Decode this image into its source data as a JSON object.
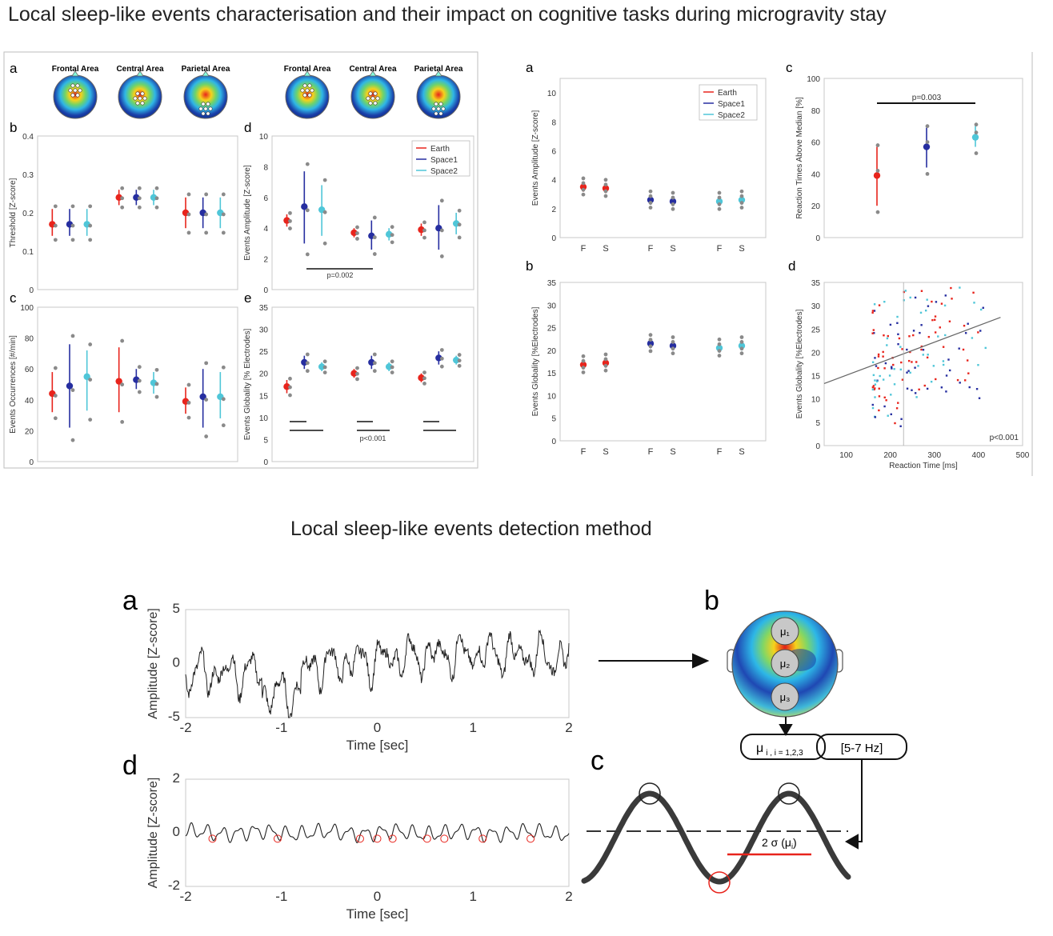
{
  "titles": {
    "main": "Local sleep-like events characterisation and their impact on cognitive tasks during microgravity stay",
    "method": "Local sleep-like events detection method"
  },
  "panel_letters": {
    "a1": "a",
    "b1": "b",
    "c1": "c",
    "d1": "d",
    "e1": "e",
    "a2": "a",
    "b2": "b",
    "c2": "c",
    "d2": "d",
    "a3": "a",
    "b3": "b",
    "c3": "c",
    "d3": "d"
  },
  "areas": [
    "Frontal Area",
    "Central Area",
    "Parietal Area"
  ],
  "legend": [
    "Earth",
    "Space1",
    "Space2"
  ],
  "colors": {
    "earth": "#e8241c",
    "space1": "#262ea0",
    "space2": "#4fc6d8",
    "gray": "#8a8a8a"
  },
  "electrodes": {
    "mu1": "μ₁",
    "mu2": "μ₂",
    "mu3": "μ₃"
  },
  "flow": {
    "mu_label": "μ",
    "mu_sub": "i , i = 1,2,3",
    "band": "[5-7 Hz]",
    "sigma": "2 σ (μ",
    "sigma_sub": "i",
    "sigma_close": ")"
  },
  "chart_data": [
    {
      "id": "threshold",
      "type": "scatter",
      "ylabel": "Threshold [Z-score]",
      "ylim": [
        0,
        0.4
      ],
      "yticks": [
        "0",
        "0.1",
        "0.2",
        "0.3",
        "0.4"
      ],
      "groups": [
        "Frontal Area",
        "Central Area",
        "Parietal Area"
      ],
      "series": [
        {
          "name": "Earth",
          "mean": [
            0.17,
            0.24,
            0.2
          ],
          "lo": [
            0.14,
            0.22,
            0.16
          ],
          "hi": [
            0.21,
            0.26,
            0.24
          ]
        },
        {
          "name": "Space1",
          "mean": [
            0.17,
            0.24,
            0.2
          ],
          "lo": [
            0.14,
            0.22,
            0.16
          ],
          "hi": [
            0.21,
            0.26,
            0.24
          ]
        },
        {
          "name": "Space2",
          "mean": [
            0.17,
            0.24,
            0.2
          ],
          "lo": [
            0.14,
            0.22,
            0.16
          ],
          "hi": [
            0.21,
            0.26,
            0.24
          ]
        }
      ]
    },
    {
      "id": "occurrences",
      "type": "scatter",
      "ylabel": "Events Occurrences [#/min]",
      "ylim": [
        0,
        100
      ],
      "yticks": [
        "0",
        "20",
        "40",
        "60",
        "80",
        "100"
      ],
      "groups": [
        "Frontal Area",
        "Central Area",
        "Parietal Area"
      ],
      "series": [
        {
          "name": "Earth",
          "mean": [
            44,
            52,
            39
          ],
          "lo": [
            32,
            32,
            31
          ],
          "hi": [
            58,
            74,
            48
          ]
        },
        {
          "name": "Space1",
          "mean": [
            49,
            53,
            42
          ],
          "lo": [
            22,
            47,
            22
          ],
          "hi": [
            76,
            60,
            60
          ]
        },
        {
          "name": "Space2",
          "mean": [
            55,
            51,
            42
          ],
          "lo": [
            33,
            44,
            28
          ],
          "hi": [
            72,
            58,
            58
          ]
        }
      ]
    },
    {
      "id": "amplitude-d",
      "type": "scatter",
      "ylabel": "Events Amplitude [Z-score]",
      "ylim": [
        0,
        10
      ],
      "yticks": [
        "0",
        "2",
        "4",
        "6",
        "8",
        "10"
      ],
      "annotation": "p=0.002",
      "groups": [
        "Frontal Area",
        "Central Area",
        "Parietal Area"
      ],
      "series": [
        {
          "name": "Earth",
          "mean": [
            4.5,
            3.7,
            3.9
          ],
          "lo": [
            4.1,
            3.4,
            3.5
          ],
          "hi": [
            4.9,
            4.0,
            4.3
          ]
        },
        {
          "name": "Space1",
          "mean": [
            5.4,
            3.5,
            4.0
          ],
          "lo": [
            3.0,
            2.6,
            2.6
          ],
          "hi": [
            7.7,
            4.5,
            5.5
          ]
        },
        {
          "name": "Space2",
          "mean": [
            5.2,
            3.6,
            4.3
          ],
          "lo": [
            3.5,
            3.2,
            3.6
          ],
          "hi": [
            6.8,
            4.0,
            5.0
          ]
        }
      ]
    },
    {
      "id": "globality-e",
      "type": "scatter",
      "ylabel": "Events Globality [% Electrodes]",
      "ylim": [
        0,
        35
      ],
      "yticks": [
        "0",
        "5",
        "10",
        "15",
        "20",
        "25",
        "30",
        "35"
      ],
      "annotation": "p<0.001",
      "groups": [
        "Frontal Area",
        "Central Area",
        "Parietal Area"
      ],
      "series": [
        {
          "name": "Earth",
          "mean": [
            17,
            20,
            19
          ],
          "lo": [
            15.5,
            19,
            18
          ],
          "hi": [
            18.5,
            21,
            20
          ]
        },
        {
          "name": "Space1",
          "mean": [
            22.5,
            22.5,
            23.5
          ],
          "lo": [
            21,
            21,
            22
          ],
          "hi": [
            24,
            24,
            25
          ]
        },
        {
          "name": "Space2",
          "mean": [
            21.5,
            21.5,
            23
          ],
          "lo": [
            20.5,
            20.5,
            22
          ],
          "hi": [
            22.5,
            22.5,
            24
          ]
        }
      ]
    },
    {
      "id": "amplitude-fs",
      "type": "scatter",
      "ylabel": "Events Amplitude [Z-score]",
      "ylim": [
        0,
        11
      ],
      "yticks": [
        "0",
        "2",
        "4",
        "6",
        "8",
        "10"
      ],
      "categories": [
        "F",
        "S",
        "F",
        "S",
        "F",
        "S"
      ],
      "series": [
        {
          "name": "Earth",
          "mean": [
            3.5,
            3.4
          ]
        },
        {
          "name": "Space1",
          "mean": [
            2.6,
            2.5
          ]
        },
        {
          "name": "Space2",
          "mean": [
            2.5,
            2.6
          ]
        }
      ]
    },
    {
      "id": "globality-fs",
      "type": "scatter",
      "ylabel": "Events Globality [%Electrodes]",
      "ylim": [
        0,
        35
      ],
      "yticks": [
        "0",
        "5",
        "10",
        "15",
        "20",
        "25",
        "30",
        "35"
      ],
      "categories": [
        "F",
        "S",
        "F",
        "S",
        "F",
        "S"
      ],
      "series": [
        {
          "name": "Earth",
          "mean": [
            16.8,
            17.2
          ]
        },
        {
          "name": "Space1",
          "mean": [
            21.5,
            21.0
          ]
        },
        {
          "name": "Space2",
          "mean": [
            20.5,
            21.0
          ]
        }
      ]
    },
    {
      "id": "reaction-median",
      "type": "scatter",
      "ylabel": "Reaction Times Above Median [%]",
      "ylim": [
        0,
        100
      ],
      "yticks": [
        "0",
        "20",
        "40",
        "60",
        "80",
        "100"
      ],
      "annotation": "p=0.003",
      "series": [
        {
          "name": "Earth",
          "mean": 39,
          "lo": 20,
          "hi": 57
        },
        {
          "name": "Space1",
          "mean": 57,
          "lo": 44,
          "hi": 69
        },
        {
          "name": "Space2",
          "mean": 63,
          "lo": 57,
          "hi": 70
        }
      ]
    },
    {
      "id": "globality-vs-rt",
      "type": "scatter",
      "xlabel": "Reaction Time [ms]",
      "ylabel": "Events Globality [%Electrodes]",
      "xlim": [
        50,
        500
      ],
      "ylim": [
        0,
        35
      ],
      "xticks": [
        "100",
        "200",
        "300",
        "400",
        "500"
      ],
      "yticks": [
        "0",
        "5",
        "10",
        "15",
        "20",
        "25",
        "30",
        "35"
      ],
      "annotation": "p<0.001",
      "fit": {
        "x": [
          50,
          450
        ],
        "y": [
          13.3,
          27.5
        ]
      }
    },
    {
      "id": "signal-a",
      "type": "line",
      "xlabel": "Time [sec]",
      "ylabel": "Amplitude [Z-score]",
      "xlim": [
        -2,
        2
      ],
      "ylim": [
        -5,
        5
      ],
      "xticks": [
        "-2",
        "-1",
        "0",
        "1",
        "2"
      ],
      "yticks": [
        "-5",
        "0",
        "5"
      ]
    },
    {
      "id": "signal-d",
      "type": "line",
      "xlabel": "Time [sec]",
      "ylabel": "Amplitude [Z-score]",
      "xlim": [
        -2,
        2
      ],
      "ylim": [
        -2,
        2
      ],
      "xticks": [
        "-2",
        "-1",
        "0",
        "1",
        "2"
      ],
      "yticks": [
        "-2",
        "0",
        "2"
      ],
      "troughs": [
        -1.72,
        -1.04,
        -0.18,
        0.0,
        0.16,
        0.52,
        0.7,
        1.1,
        1.6
      ]
    }
  ]
}
